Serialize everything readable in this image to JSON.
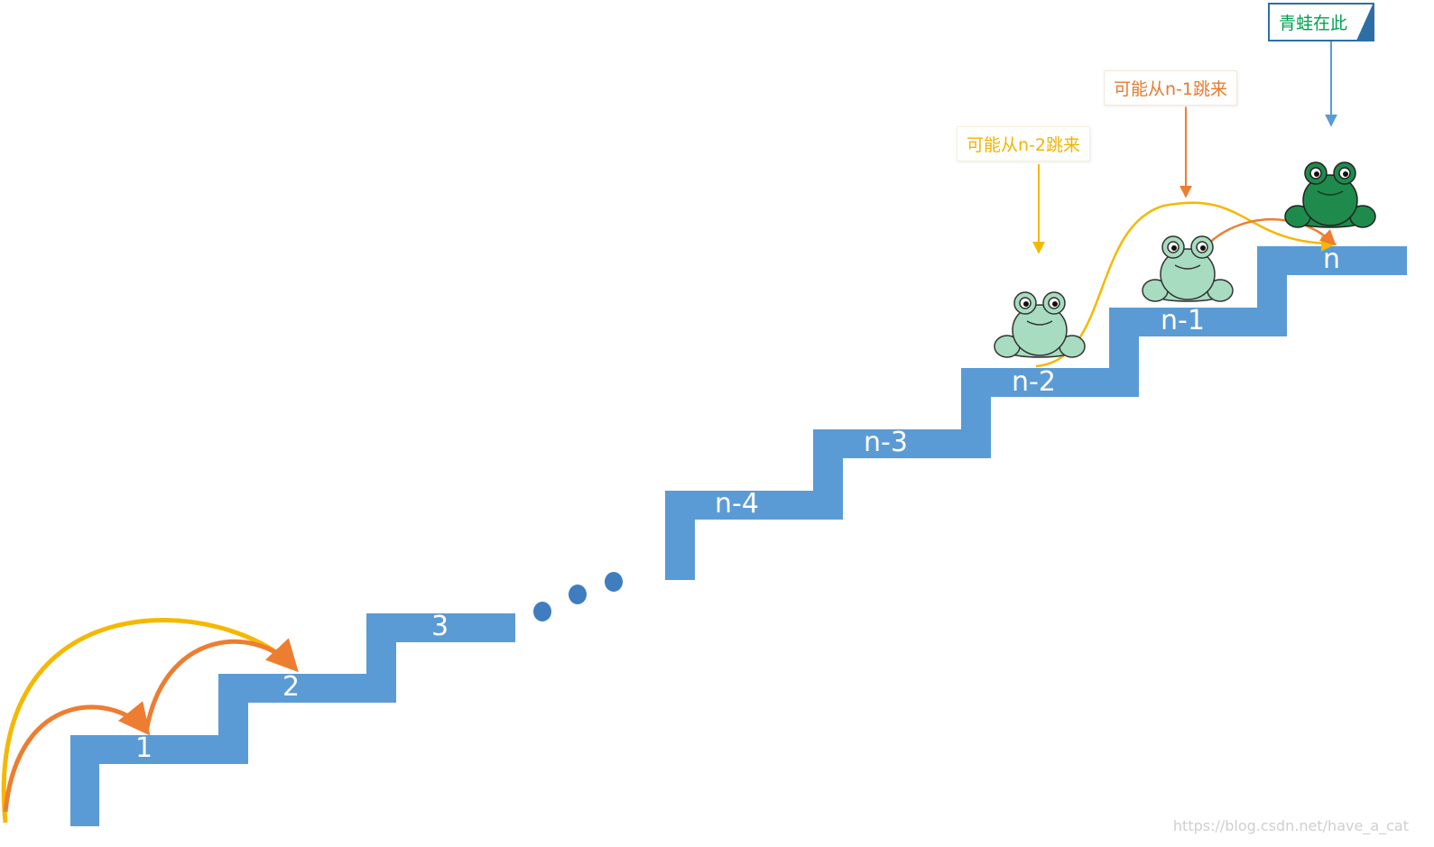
{
  "steps": [
    "1",
    "2",
    "3",
    "n-4",
    "n-3",
    "n-2",
    "n-1",
    "n"
  ],
  "notes": {
    "from_n2": "可能从n-2跳来",
    "from_n1": "可能从n-1跳来",
    "frog_here": "青蛙在此"
  },
  "watermark": "https://blog.csdn.net/have_a_cat",
  "colors": {
    "stair": "#5b9bd5",
    "ellipsis_dot": "#3f7dbf",
    "yellow": "#f5b800",
    "orange": "#ed7d31",
    "blue_pointer": "#5b9bd5",
    "frog_ghost": "#a8dcc0",
    "frog_main": "#1e8a4c",
    "note_green_text": "#00a050"
  }
}
